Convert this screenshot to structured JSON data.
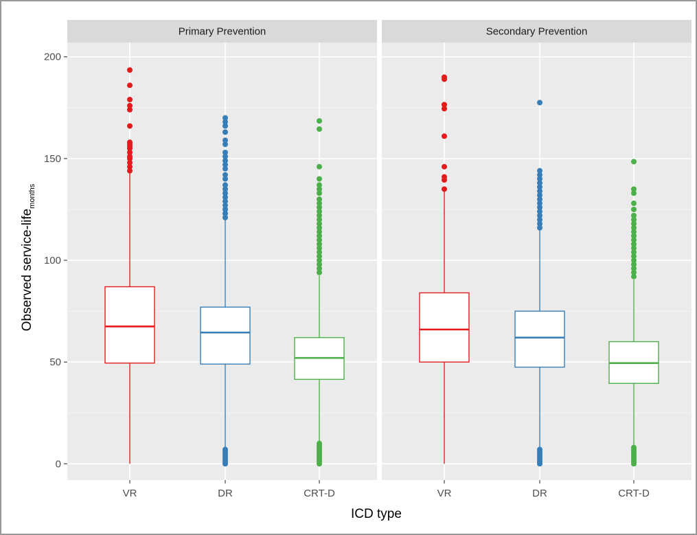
{
  "chart_data": {
    "type": "boxplot",
    "xlabel": "ICD type",
    "ylabel": "Observed service-life",
    "ylabel_subscript": "months",
    "ylim": [
      -8,
      207
    ],
    "yticks": [
      0,
      50,
      100,
      150,
      200
    ],
    "categories": [
      "VR",
      "DR",
      "CRT-D"
    ],
    "colors": {
      "VR": "#E41A1C",
      "DR": "#377EB8",
      "CRT-D": "#4DAF4A"
    },
    "grid": true,
    "panels": [
      {
        "title": "Primary Prevention",
        "boxes": [
          {
            "category": "VR",
            "min": 0,
            "q1": 49.5,
            "median": 67.5,
            "q3": 87,
            "max": 143,
            "outliers_high": [
              144,
              146,
              148,
              150,
              151,
              153,
              155,
              156,
              157,
              158,
              166,
              174,
              176,
              179,
              186,
              193.5
            ],
            "outliers_low": []
          },
          {
            "category": "DR",
            "min": 8,
            "q1": 49,
            "median": 64.5,
            "q3": 77,
            "max": 120,
            "outliers_high": [
              121,
              123,
              125,
              127,
              129,
              131,
              133,
              135,
              137,
              140,
              142,
              145,
              147,
              149,
              151,
              153,
              157,
              159,
              163,
              166,
              168,
              170
            ],
            "outliers_low": [
              0,
              1,
              2,
              3,
              4,
              5,
              6,
              7
            ]
          },
          {
            "category": "CRT-D",
            "min": 11,
            "q1": 41.5,
            "median": 52,
            "q3": 62,
            "max": 92.5,
            "outliers_high": [
              94,
              96,
              98,
              100,
              102,
              104,
              106,
              108,
              110,
              112,
              114,
              116,
              118,
              120,
              122,
              124,
              126,
              128,
              130,
              133,
              135,
              137,
              140,
              146,
              164.5,
              168.5
            ],
            "outliers_low": [
              0,
              1,
              2,
              3,
              4,
              5,
              6,
              7,
              8,
              9,
              10
            ]
          }
        ]
      },
      {
        "title": "Secondary Prevention",
        "boxes": [
          {
            "category": "VR",
            "min": 0,
            "q1": 50,
            "median": 66,
            "q3": 84,
            "max": 134,
            "outliers_high": [
              135,
              139.5,
              141,
              146,
              161,
              174.5,
              176.5,
              189,
              190
            ],
            "outliers_low": []
          },
          {
            "category": "DR",
            "min": 8,
            "q1": 47.5,
            "median": 62,
            "q3": 75,
            "max": 115,
            "outliers_high": [
              116,
              118,
              120,
              122,
              124,
              126,
              128,
              130,
              132,
              134,
              136,
              138,
              140,
              142,
              144,
              177.5
            ],
            "outliers_low": [
              0,
              1,
              2,
              3,
              4,
              5,
              6,
              7
            ]
          },
          {
            "category": "CRT-D",
            "min": 9,
            "q1": 39.5,
            "median": 49.5,
            "q3": 60,
            "max": 90.5,
            "outliers_high": [
              92,
              94,
              96,
              98,
              100,
              102,
              104,
              106,
              108,
              110,
              112,
              114,
              116,
              118,
              120,
              122,
              125,
              128,
              133,
              135,
              148.5
            ],
            "outliers_low": [
              0,
              1,
              2,
              3,
              4,
              5,
              6,
              7,
              8
            ]
          }
        ]
      }
    ]
  }
}
